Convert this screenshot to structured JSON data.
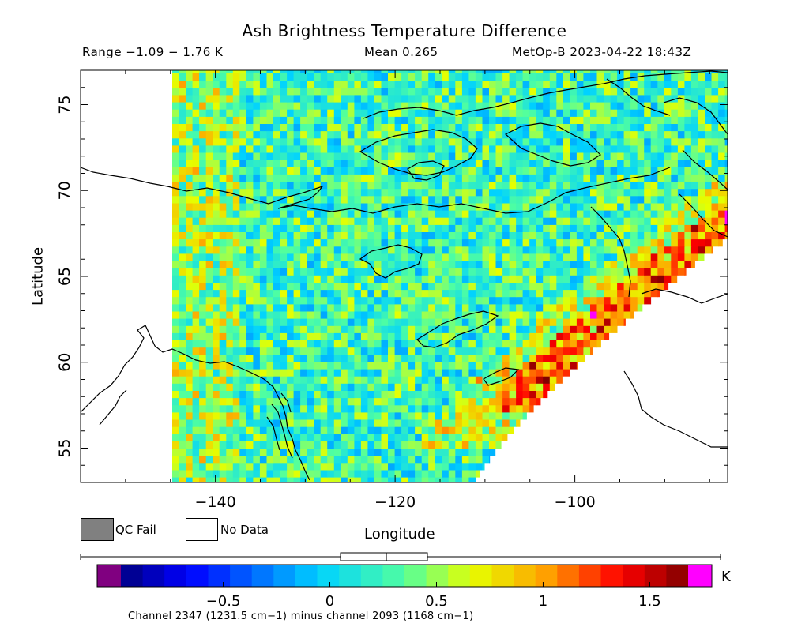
{
  "chart_data": {
    "type": "heatmap",
    "title": "Ash Brightness Temperature Difference",
    "range_label": "Range −1.09 − 1.76 K",
    "mean_label": "Mean 0.265",
    "satellite_label": "MetOp-B 2023-04-22 18:43Z",
    "xlabel": "Longitude",
    "ylabel": "Latitude",
    "xlim": [
      -155,
      -83
    ],
    "ylim": [
      53,
      77
    ],
    "x_ticks": [
      -140,
      -120,
      -100
    ],
    "x_tick_labels": [
      "−140",
      "−120",
      "−100"
    ],
    "y_ticks": [
      55,
      60,
      65,
      70,
      75
    ],
    "y_tick_labels": [
      "55",
      "60",
      "65",
      "70",
      "75"
    ],
    "value_range": [
      -1.09,
      1.76
    ],
    "mean": 0.265,
    "colorbar": {
      "unit": "K",
      "min": -0.98,
      "max": 1.68,
      "ticks": [
        -0.5,
        0,
        0.5,
        1,
        1.5
      ],
      "tick_labels": [
        "−0.5",
        "0",
        "0.5",
        "1",
        "1.5"
      ],
      "under_color": "#800080",
      "over_color": "#ff00ff",
      "caption": "Channel 2347 (1231.5 cm−1) minus channel 2093 (1168 cm−1)"
    },
    "legend": [
      {
        "label": "QC Fail",
        "color": "#808080"
      },
      {
        "label": "No Data",
        "color": "#ffffff"
      }
    ],
    "ash_signal": "high values (1.0 to 1.76 K) along the eastern swath edge near -106 to -90 longitude, 58 to 71 latitude"
  }
}
